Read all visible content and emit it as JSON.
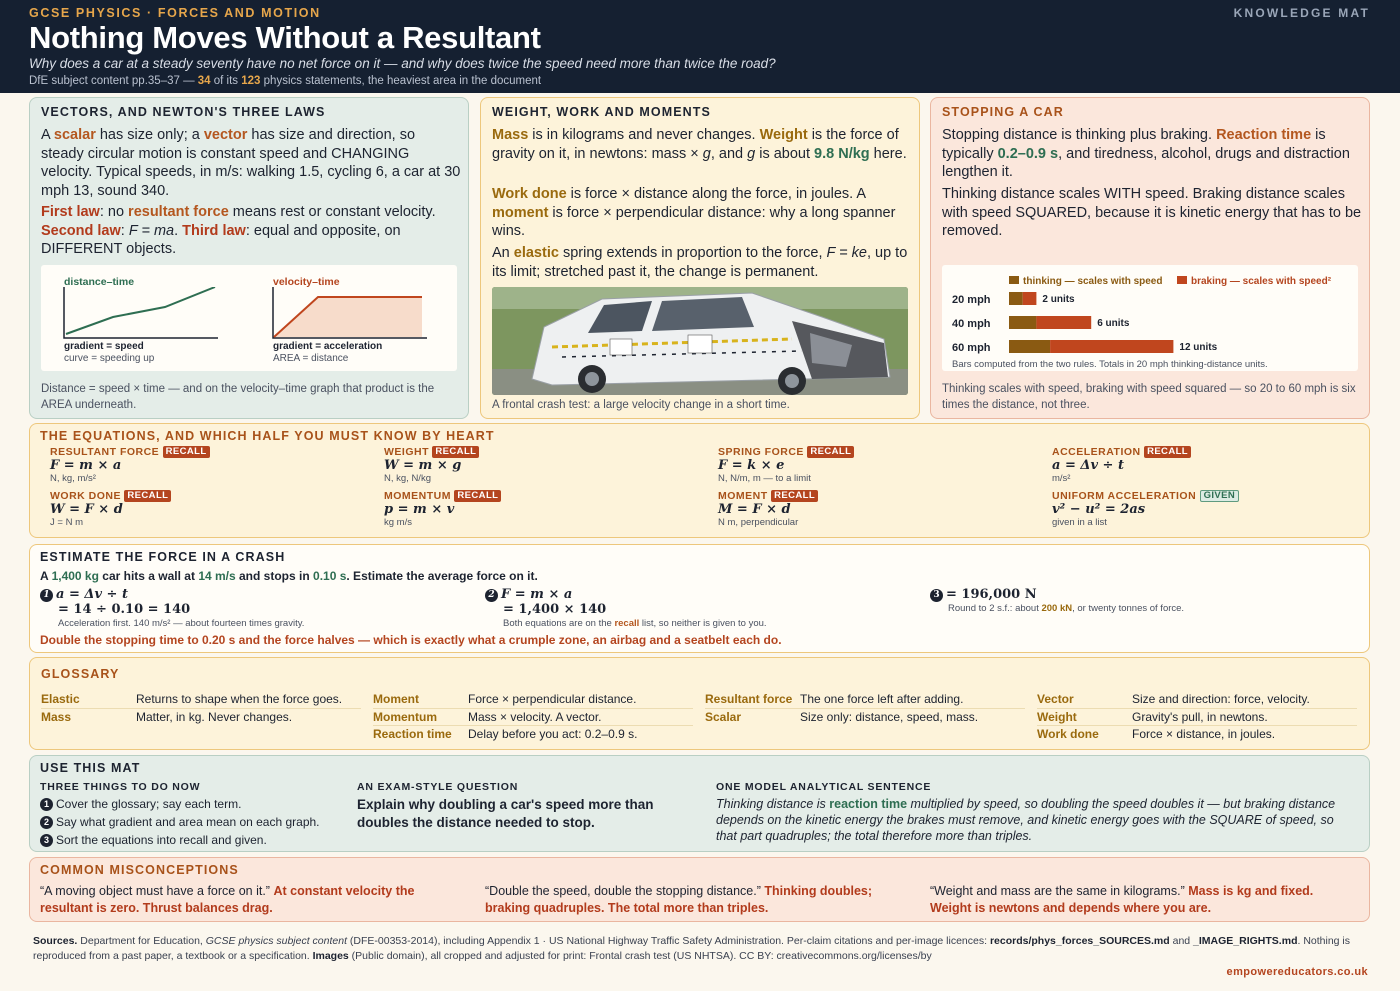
{
  "header": {
    "kicker": "GCSE PHYSICS · FORCES AND MOTION",
    "title": "Nothing Moves Without a Resultant",
    "subtitle": "Why does a car at a steady seventy have no net force on it — and why does twice the speed need more than twice the road?",
    "meta_pre": "DfE subject content pp.35–37 — ",
    "meta_n1": "34",
    "meta_mid": " of its ",
    "meta_n2": "123",
    "meta_post": " physics statements, the heaviest area in the document",
    "right": "KNOWLEDGE MAT"
  },
  "vectors": {
    "title": "VECTORS, AND NEWTON'S THREE LAWS",
    "p1_a": "A ",
    "p1_scalar": "scalar",
    "p1_b": " has size only; a ",
    "p1_vector": "vector",
    "p1_c": " has size and direction, so steady circular motion is constant speed and CHANGING velocity. Typical speeds, in m/s: walking 1.5, cycling 6, a car at 30 mph 13, sound 340.",
    "p2_first": "First law",
    "p2_a": ": no ",
    "p2_res": "resultant force",
    "p2_b": " means rest or constant velocity. ",
    "p2_second": "Second law",
    "p2_c": ": ",
    "p2_f": "F = ma",
    "p2_d": ". ",
    "p2_third": "Third law",
    "p2_e": ": equal and opposite, on DIFFERENT objects.",
    "g1_label": "distance–time",
    "g1_c1": "gradient = speed",
    "g1_c2": "curve = speeding up",
    "g2_label": "velocity–time",
    "g2_c1": "gradient = acceleration",
    "g2_c2": "AREA = distance",
    "caption": "Distance = speed × time — and on the velocity–time graph that product is the AREA underneath."
  },
  "weight": {
    "title": "WEIGHT, WORK AND MOMENTS",
    "p1_mass": "Mass",
    "p1_a": " is in kilograms and never changes. ",
    "p1_weight": "Weight",
    "p1_b": " is the force of gravity on it, in newtons: mass × ",
    "p1_g": "g",
    "p1_c": ", and ",
    "p1_g2": "g",
    "p1_d": " is about ",
    "p1_val": "9.8 N/kg",
    "p1_e": " here.",
    "p2_work": "Work done",
    "p2_a": " is force × distance along the force, in joules. A ",
    "p2_moment": "moment",
    "p2_b": " is force × perpendicular distance: why a long spanner wins.",
    "p3_a": "An ",
    "p3_elastic": "elastic",
    "p3_b": " spring extends in proportion to the force, ",
    "p3_f": "F = ke",
    "p3_c": ", up to its limit; stretched past it, the change is permanent.",
    "caption": "A frontal crash test: a large velocity change in a short time."
  },
  "stopping": {
    "title": "STOPPING A CAR",
    "p1_a": "Stopping distance is thinking plus braking. ",
    "p1_rt": "Reaction time",
    "p1_b": " is typically ",
    "p1_val": "0.2–0.9 s",
    "p1_c": ", and tiredness, alcohol, drugs and distraction lengthen it.",
    "p2": "Thinking distance scales WITH speed. Braking distance scales with speed SQUARED, because it is kinetic energy that has to be removed.",
    "legend_thinking": "thinking — scales with speed",
    "legend_braking": "braking — scales with speed²",
    "note": "Bars computed from the two rules. Totals in 20 mph thinking-distance units.",
    "caption": "Thinking scales with speed, braking with speed squared — so 20 to 60 mph is six times the distance, not three."
  },
  "chart_data": {
    "type": "bar",
    "stacked": true,
    "orientation": "horizontal",
    "categories": [
      "20 mph",
      "40 mph",
      "60 mph"
    ],
    "series": [
      {
        "name": "thinking — scales with speed",
        "values": [
          1,
          2,
          3
        ],
        "color": "#8a5a12"
      },
      {
        "name": "braking — scales with speed²",
        "values": [
          1,
          4,
          9
        ],
        "color": "#c0461e"
      }
    ],
    "totals_labels": [
      "2 units",
      "6 units",
      "12 units"
    ],
    "legend": "top",
    "grid": false
  },
  "equations": {
    "title": "THE EQUATIONS, AND WHICH HALF YOU MUST KNOW BY HEART",
    "recall": "RECALL",
    "given": "GIVEN",
    "items": [
      {
        "name": "RESULTANT FORCE",
        "eq": "F = m × a",
        "units": "N, kg, m/s²"
      },
      {
        "name": "WEIGHT",
        "eq": "W = m × g",
        "units": "N, kg, N/kg"
      },
      {
        "name": "SPRING FORCE",
        "eq": "F = k × e",
        "units": "N, N/m, m — to a limit"
      },
      {
        "name": "ACCELERATION",
        "eq": "a = Δv ÷ t",
        "units": "m/s²"
      },
      {
        "name": "WORK DONE",
        "eq": "W = F × d",
        "units": "J = N m"
      },
      {
        "name": "MOMENTUM",
        "eq": "p = m × v",
        "units": "kg m/s"
      },
      {
        "name": "MOMENT",
        "eq": "M = F × d",
        "units": "N m, perpendicular"
      },
      {
        "name": "UNIFORM ACCELERATION",
        "eq": "v² − u² = 2as",
        "units": "given in a list"
      }
    ]
  },
  "estimate": {
    "title": "ESTIMATE THE FORCE IN A CRASH",
    "q_a": "A ",
    "q_m": "1,400 kg",
    "q_b": " car hits a wall at ",
    "q_v": "14 m/s",
    "q_c": " and stops in ",
    "q_t": "0.10 s",
    "q_d": ". Estimate the average force on it.",
    "s1_n": "1",
    "s1_l1": "a = Δv ÷ t",
    "s1_l2": "= 14 ÷ 0.10 = 140",
    "s1_note": "Acceleration first. 140 m/s² — about fourteen times gravity.",
    "s2_n": "2",
    "s2_l1": "F = m × a",
    "s2_l2": "= 1,400 × 140",
    "s2_note_a": "Both equations are on the ",
    "s2_note_recall": "recall",
    "s2_note_b": " list, so neither is given to you.",
    "s3_n": "3",
    "s3_l1": "= 196,000 N",
    "s3_note_a": "Round to 2 s.f.: about ",
    "s3_note_val": "200 kN",
    "s3_note_b": ", or twenty tonnes of force.",
    "conclusion": "Double the stopping time to 0.20 s and the force halves — which is exactly what a crumple zone, an airbag and a seatbelt each do."
  },
  "glossary": {
    "title": "GLOSSARY",
    "col1": [
      {
        "term": "Elastic",
        "def": "Returns to shape when the force goes."
      },
      {
        "term": "Mass",
        "def": "Matter, in kg. Never changes."
      }
    ],
    "col2": [
      {
        "term": "Moment",
        "def": "Force × perpendicular distance."
      },
      {
        "term": "Momentum",
        "def": "Mass × velocity. A vector."
      },
      {
        "term": "Reaction time",
        "def": "Delay before you act: 0.2–0.9 s."
      }
    ],
    "col3": [
      {
        "term": "Resultant force",
        "def": "The one force left after adding."
      },
      {
        "term": "Scalar",
        "def": "Size only: distance, speed, mass."
      }
    ],
    "col4": [
      {
        "term": "Vector",
        "def": "Size and direction: force, velocity."
      },
      {
        "term": "Weight",
        "def": "Gravity's pull, in newtons."
      },
      {
        "term": "Work done",
        "def": "Force × distance, in joules."
      }
    ]
  },
  "use": {
    "title": "USE THIS MAT",
    "three_title": "THREE THINGS TO DO NOW",
    "steps": [
      "Cover the glossary; say each term.",
      "Say what gradient and area mean on each graph.",
      "Sort the equations into recall and given."
    ],
    "exam_title": "AN EXAM-STYLE QUESTION",
    "exam_q": "Explain why doubling a car's speed more than doubles the distance needed to stop.",
    "model_title": "ONE MODEL ANALYTICAL SENTENCE",
    "model_a": "Thinking distance is ",
    "model_rt": "reaction time",
    "model_b": " multiplied by speed, so doubling the speed doubles it — but braking distance depends on the kinetic energy the brakes must remove, and kinetic energy goes with the SQUARE of speed, so that part quadruples; the total therefore more than triples."
  },
  "misconceptions": {
    "title": "COMMON MISCONCEPTIONS",
    "items": [
      {
        "quote": "“A moving object must have a force on it.”",
        "fix": "At constant velocity the resultant is zero. Thrust balances drag."
      },
      {
        "quote": "“Double the speed, double the stopping distance.”",
        "fix": "Thinking doubles; braking quadruples. The total more than triples."
      },
      {
        "quote": "“Weight and mass are the same in kilograms.”",
        "fix": "Mass is kg and fixed. Weight is newtons and depends where you are."
      }
    ]
  },
  "sources": {
    "label": "Sources.",
    "a": " Department for Education, ",
    "doc": "GCSE physics subject content",
    "b": " (DFE-00353-2014), including Appendix 1 · US National Highway Traffic Safety Administration. Per-claim citations and per-image licences: ",
    "file1": "records/phys_forces_SOURCES.md",
    "c": " and ",
    "file2": "_IMAGE_RIGHTS.md",
    "d": ". Nothing is reproduced from a past paper, a textbook or a specification. ",
    "images_label": "Images",
    "e": " (Public domain), all cropped and adjusted for print: Frontal crash test (US NHTSA). CC BY: creativecommons.org/licenses/by",
    "url": "empowereducators.co.uk"
  }
}
